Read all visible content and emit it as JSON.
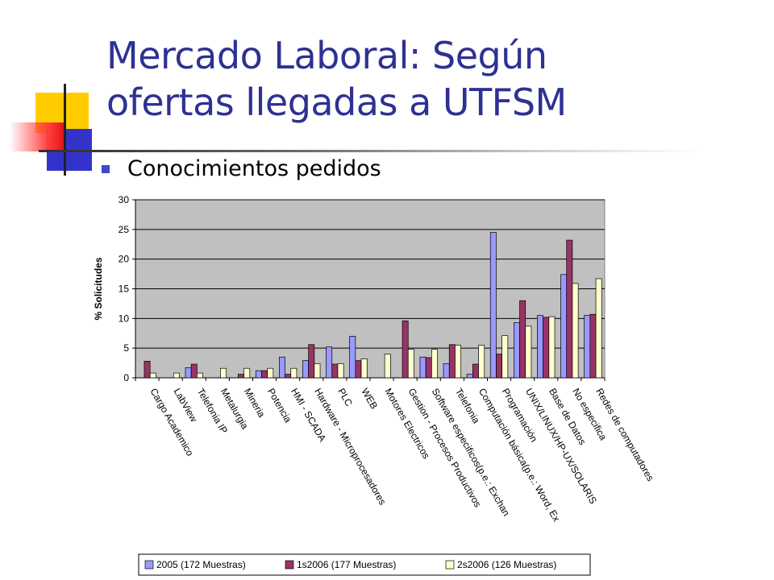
{
  "slide": {
    "title_line1": "Mercado Laboral: Según",
    "title_line2": "ofertas llegadas a UTFSM",
    "bullet": "Conocimientos pedidos"
  },
  "colors": {
    "title": "#2e3192",
    "plot_bg": "#c0c0c0",
    "series": [
      "#9999ff",
      "#993366",
      "#ffffcc"
    ]
  },
  "chart_data": {
    "type": "bar",
    "ylabel": "% Solicitudes",
    "ylim": [
      0,
      30
    ],
    "yticks": [
      0,
      5,
      10,
      15,
      20,
      25,
      30
    ],
    "grid": true,
    "legend_position": "bottom",
    "categories": [
      "Cargo Academico",
      "LabView",
      "Telefonia IP",
      "Metalurgia",
      "Mineria",
      "Potencia",
      "HMI - SCADA",
      "Hardware - Microprocesadores",
      "PLC",
      "WEB",
      "Motores Electricos",
      "Gestion - Procesos Productivos",
      "Software especificos(p.e.: Exchan",
      "Telefonia",
      "Computación básica(p.e.: Word, Ex",
      "Programación",
      "UNIX/LINUX/HP-UX/SOLARIS",
      "Base de Datos",
      "No especifica",
      "Redes de computadores"
    ],
    "series": [
      {
        "name": "2005 (172 Muestras)",
        "values": [
          0,
          0,
          1.7,
          0,
          0,
          1.2,
          3.5,
          2.9,
          5.2,
          7.0,
          0,
          0,
          3.5,
          2.4,
          0.6,
          24.5,
          9.3,
          10.5,
          17.4,
          10.5
        ]
      },
      {
        "name": "1s2006 (177 Muestras)",
        "values": [
          2.8,
          0,
          2.3,
          0,
          0.6,
          1.2,
          0.6,
          5.6,
          2.3,
          2.9,
          0,
          9.6,
          3.4,
          5.6,
          2.3,
          4.0,
          13.0,
          10.2,
          23.2,
          10.7
        ]
      },
      {
        "name": "2s2006 (126 Muestras)",
        "values": [
          0.8,
          0.8,
          0.8,
          1.6,
          1.6,
          1.6,
          1.6,
          2.4,
          2.4,
          3.2,
          4.0,
          4.8,
          4.8,
          5.5,
          5.5,
          7.1,
          8.7,
          10.3,
          15.9,
          16.7
        ]
      }
    ]
  }
}
